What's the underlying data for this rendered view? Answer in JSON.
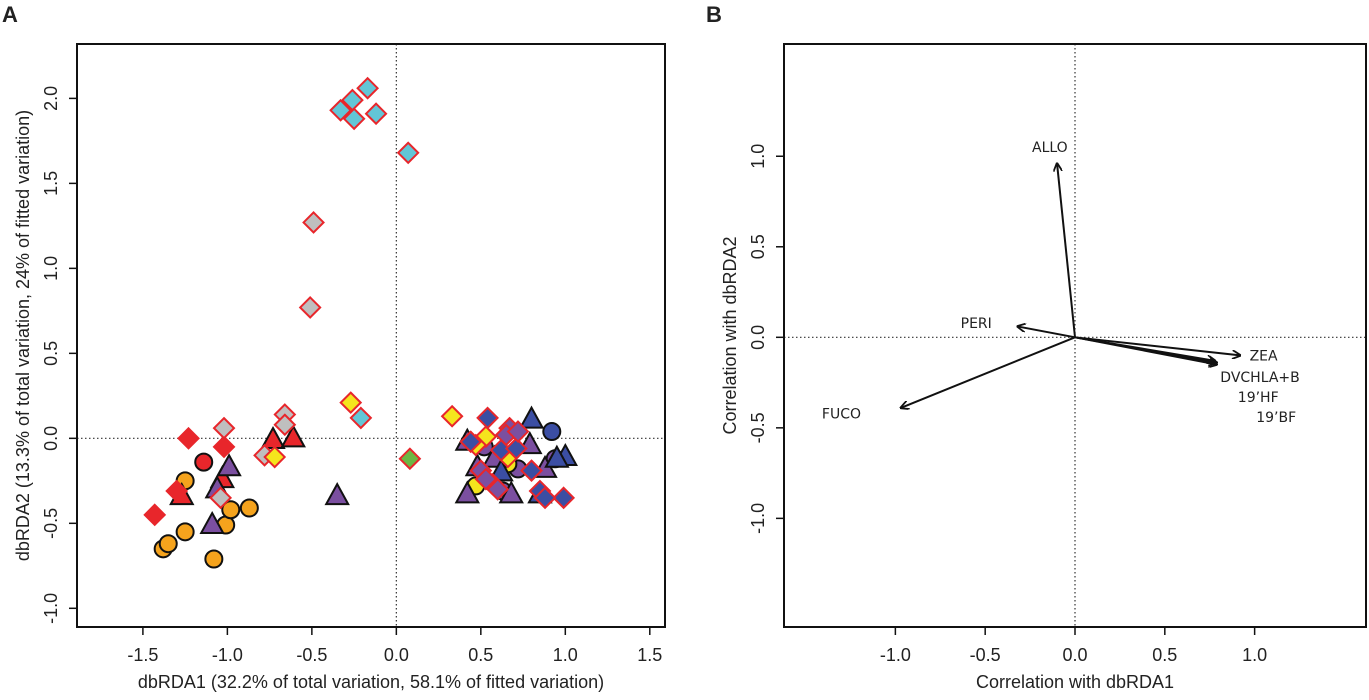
{
  "chart_data": [
    {
      "panel": "A",
      "type": "scatter",
      "xlabel": "dbRDA1 (32.2% of total variation, 58.1% of fitted variation)",
      "ylabel": "dbRDA2 (13.3% of total variation, 24% of fitted variation)",
      "xlim": [
        -1.89,
        1.59
      ],
      "ylim": [
        -1.11,
        2.32
      ],
      "xticks": [
        "-1.5",
        "-1.0",
        "-0.5",
        "0.0",
        "0.5",
        "1.0",
        "1.5"
      ],
      "xtick_values": [
        -1.5,
        -1.0,
        -0.5,
        0.0,
        0.5,
        1.0,
        1.5
      ],
      "yticks": [
        "-1.0",
        "-0.5",
        "0.0",
        "0.5",
        "1.0",
        "1.5",
        "2.0"
      ],
      "ytick_values": [
        -1.0,
        -0.5,
        0.0,
        0.5,
        1.0,
        1.5,
        2.0
      ],
      "reference_lines": {
        "x": 0,
        "y": 0
      },
      "series": [
        {
          "marker": "circle",
          "fill": "#f5a31d",
          "stroke": "#111111",
          "points": [
            [
              -1.25,
              -0.25
            ],
            [
              -1.25,
              -0.55
            ],
            [
              -1.38,
              -0.65
            ],
            [
              -1.35,
              -0.62
            ],
            [
              -1.08,
              -0.71
            ],
            [
              -1.01,
              -0.51
            ],
            [
              -0.98,
              -0.42
            ],
            [
              -0.87,
              -0.41
            ]
          ]
        },
        {
          "marker": "circle",
          "fill": "#e8262b",
          "stroke": "#111111",
          "points": [
            [
              -1.14,
              -0.14
            ]
          ]
        },
        {
          "marker": "circle",
          "fill": "#3b4ea3",
          "stroke": "#111111",
          "points": [
            [
              0.92,
              0.04
            ]
          ]
        },
        {
          "marker": "circle",
          "fill": "#7b4fa0",
          "stroke": "#111111",
          "points": [
            [
              0.94,
              -0.12
            ],
            [
              0.63,
              -0.31
            ],
            [
              0.52,
              -0.05
            ],
            [
              0.72,
              -0.18
            ]
          ]
        },
        {
          "marker": "circle",
          "fill": "#f5e51d",
          "stroke": "#111111",
          "points": [
            [
              0.47,
              -0.28
            ],
            [
              0.66,
              -0.15
            ]
          ]
        },
        {
          "marker": "triangle",
          "fill": "#e8262b",
          "stroke": "#111111",
          "points": [
            [
              -0.73,
              -0.01
            ],
            [
              -0.61,
              0.0
            ],
            [
              -1.03,
              -0.24
            ],
            [
              -1.27,
              -0.34
            ]
          ]
        },
        {
          "marker": "triangle",
          "fill": "#7b4fa0",
          "stroke": "#111111",
          "points": [
            [
              -0.99,
              -0.17
            ],
            [
              -1.09,
              -0.51
            ],
            [
              -0.35,
              -0.34
            ],
            [
              -1.06,
              -0.3
            ],
            [
              0.42,
              -0.02
            ],
            [
              0.42,
              -0.33
            ],
            [
              0.68,
              -0.33
            ],
            [
              0.48,
              -0.17
            ],
            [
              0.79,
              -0.04
            ],
            [
              0.88,
              -0.18
            ],
            [
              0.58,
              -0.12
            ]
          ]
        },
        {
          "marker": "triangle",
          "fill": "#3b4ea3",
          "stroke": "#111111",
          "points": [
            [
              0.8,
              0.11
            ],
            [
              1.0,
              -0.11
            ],
            [
              0.85,
              -0.33
            ],
            [
              0.95,
              -0.12
            ],
            [
              0.62,
              -0.2
            ]
          ]
        },
        {
          "marker": "diamond",
          "fill": "#e8262b",
          "stroke": "#e8262b",
          "points": [
            [
              -1.23,
              0.0
            ],
            [
              -1.02,
              -0.05
            ],
            [
              -1.3,
              -0.31
            ],
            [
              -1.43,
              -0.45
            ]
          ]
        },
        {
          "marker": "diamond",
          "fill": "#62c6d6",
          "stroke": "#e8262b",
          "points": [
            [
              -0.33,
              1.93
            ],
            [
              -0.26,
              1.99
            ],
            [
              -0.17,
              2.06
            ],
            [
              -0.25,
              1.88
            ],
            [
              -0.12,
              1.91
            ],
            [
              0.07,
              1.68
            ],
            [
              -0.21,
              0.12
            ]
          ]
        },
        {
          "marker": "diamond",
          "fill": "#bfbfbf",
          "stroke": "#e8262b",
          "points": [
            [
              -0.49,
              1.27
            ],
            [
              -0.51,
              0.77
            ],
            [
              -0.66,
              0.14
            ],
            [
              -0.66,
              0.08
            ],
            [
              -1.02,
              0.06
            ],
            [
              -0.78,
              -0.1
            ],
            [
              -1.04,
              -0.35
            ]
          ]
        },
        {
          "marker": "diamond",
          "fill": "#f5e51d",
          "stroke": "#e8262b",
          "points": [
            [
              -0.27,
              0.21
            ],
            [
              -0.72,
              -0.11
            ],
            [
              0.33,
              0.13
            ],
            [
              0.53,
              0.01
            ],
            [
              0.66,
              -0.11
            ],
            [
              0.47,
              -0.04
            ]
          ]
        },
        {
          "marker": "diamond",
          "fill": "#6bb744",
          "stroke": "#e8262b",
          "points": [
            [
              0.08,
              -0.12
            ]
          ]
        },
        {
          "marker": "diamond",
          "fill": "#3b4ea3",
          "stroke": "#e8262b",
          "points": [
            [
              0.54,
              0.12
            ],
            [
              0.44,
              -0.02
            ],
            [
              0.62,
              -0.07
            ],
            [
              0.8,
              -0.19
            ],
            [
              0.85,
              -0.31
            ],
            [
              0.99,
              -0.35
            ],
            [
              0.88,
              -0.35
            ],
            [
              0.71,
              -0.06
            ]
          ]
        },
        {
          "marker": "diamond",
          "fill": "#7b4fa0",
          "stroke": "#e8262b",
          "points": [
            [
              0.67,
              0.06
            ],
            [
              0.5,
              -0.19
            ],
            [
              0.57,
              -0.27
            ],
            [
              0.65,
              0.02
            ],
            [
              0.72,
              0.04
            ],
            [
              0.53,
              -0.24
            ],
            [
              0.6,
              -0.3
            ]
          ]
        }
      ]
    },
    {
      "panel": "B",
      "type": "vector",
      "xlabel": "Correlation with dbRDA1",
      "ylabel": "Correlation with dbRDA2",
      "xlim": [
        -1.62,
        1.62
      ],
      "ylim": [
        -1.6,
        1.62
      ],
      "xticks": [
        "-1.0",
        "-0.5",
        "0.0",
        "0.5",
        "1.0"
      ],
      "xtick_values": [
        -1.0,
        -0.5,
        0.0,
        0.5,
        1.0
      ],
      "yticks": [
        "-1.0",
        "-0.5",
        "0.0",
        "0.5",
        "1.0"
      ],
      "ytick_values": [
        -1.0,
        -0.5,
        0.0,
        0.5,
        1.0
      ],
      "reference_lines": {
        "x": 0,
        "y": 0
      },
      "vectors": [
        {
          "label": "ALLO",
          "x": -0.1,
          "y": 0.96,
          "label_x": -0.14,
          "label_y": 1.05
        },
        {
          "label": "PERI",
          "x": -0.32,
          "y": 0.06,
          "label_x": -0.55,
          "label_y": 0.08
        },
        {
          "label": "FUCO",
          "x": -0.97,
          "y": -0.39,
          "label_x": -1.3,
          "label_y": -0.42
        },
        {
          "label": "ZEA",
          "x": 0.92,
          "y": -0.1,
          "label_x": 1.05,
          "label_y": -0.1
        },
        {
          "label": "DVCHLA+B",
          "x": 0.79,
          "y": -0.14,
          "label_x": 1.03,
          "label_y": -0.22
        },
        {
          "label": "19’HF",
          "x": 0.79,
          "y": -0.15,
          "label_x": 1.02,
          "label_y": -0.33
        },
        {
          "label": "19’BF",
          "x": 0.78,
          "y": -0.13,
          "label_x": 1.12,
          "label_y": -0.44
        }
      ]
    }
  ]
}
